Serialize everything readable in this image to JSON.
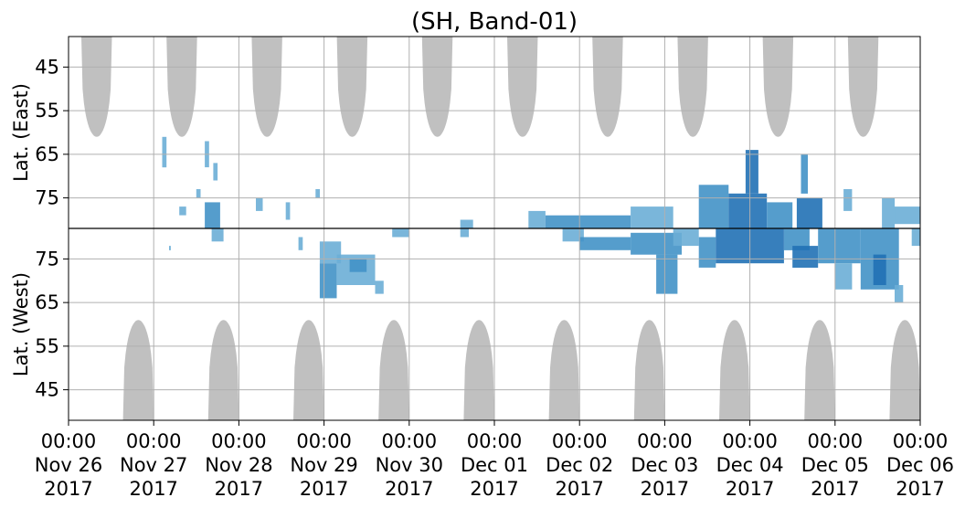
{
  "chart_data": {
    "type": "heatmap",
    "title": "(SH, Band-01)",
    "xlim": [
      "2017-11-26 00:00",
      "2017-12-06 00:00"
    ],
    "x_ticks": [
      [
        "00:00",
        "Nov 26",
        "2017"
      ],
      [
        "00:00",
        "Nov 27",
        "2017"
      ],
      [
        "00:00",
        "Nov 28",
        "2017"
      ],
      [
        "00:00",
        "Nov 29",
        "2017"
      ],
      [
        "00:00",
        "Nov 30",
        "2017"
      ],
      [
        "00:00",
        "Dec 01",
        "2017"
      ],
      [
        "00:00",
        "Dec 02",
        "2017"
      ],
      [
        "00:00",
        "Dec 03",
        "2017"
      ],
      [
        "00:00",
        "Dec 04",
        "2017"
      ],
      [
        "00:00",
        "Dec 05",
        "2017"
      ],
      [
        "00:00",
        "Dec 06",
        "2017"
      ]
    ],
    "grid": true,
    "colors": {
      "echo_light": "#6baed6",
      "echo_mid": "#4292c6",
      "echo_dark": "#2171b5",
      "daylight": "#c0c0c0",
      "grid": "#b0b0b0"
    },
    "panels": [
      {
        "name": "east",
        "ylabel": "Lat. (East)",
        "ylim": [
          38,
          82
        ],
        "yticks": [
          45,
          55,
          65,
          75
        ],
        "daylight_columns": [
          {
            "center_day": 0.33,
            "half_width_day": 0.18,
            "edge_lat": 61
          },
          {
            "center_day": 1.33,
            "half_width_day": 0.18,
            "edge_lat": 61
          },
          {
            "center_day": 2.33,
            "half_width_day": 0.18,
            "edge_lat": 61
          },
          {
            "center_day": 3.33,
            "half_width_day": 0.18,
            "edge_lat": 61
          },
          {
            "center_day": 4.33,
            "half_width_day": 0.18,
            "edge_lat": 61
          },
          {
            "center_day": 5.33,
            "half_width_day": 0.18,
            "edge_lat": 61
          },
          {
            "center_day": 6.33,
            "half_width_day": 0.18,
            "edge_lat": 61
          },
          {
            "center_day": 7.33,
            "half_width_day": 0.18,
            "edge_lat": 61
          },
          {
            "center_day": 8.33,
            "half_width_day": 0.18,
            "edge_lat": 61
          },
          {
            "center_day": 9.33,
            "half_width_day": 0.18,
            "edge_lat": 61
          }
        ],
        "echo_patches": [
          {
            "day_start": 1.1,
            "day_end": 1.15,
            "lat_min": 61,
            "lat_max": 68,
            "level": 1
          },
          {
            "day_start": 1.3,
            "day_end": 1.38,
            "lat_min": 77,
            "lat_max": 79,
            "level": 1
          },
          {
            "day_start": 1.5,
            "day_end": 1.55,
            "lat_min": 73,
            "lat_max": 75,
            "level": 1
          },
          {
            "day_start": 1.6,
            "day_end": 1.65,
            "lat_min": 62,
            "lat_max": 68,
            "level": 1
          },
          {
            "day_start": 1.6,
            "day_end": 1.78,
            "lat_min": 76,
            "lat_max": 82,
            "level": 2
          },
          {
            "day_start": 1.7,
            "day_end": 1.75,
            "lat_min": 67,
            "lat_max": 71,
            "level": 1
          },
          {
            "day_start": 2.2,
            "day_end": 2.28,
            "lat_min": 75,
            "lat_max": 78,
            "level": 1
          },
          {
            "day_start": 2.55,
            "day_end": 2.6,
            "lat_min": 76,
            "lat_max": 80,
            "level": 1
          },
          {
            "day_start": 2.9,
            "day_end": 2.95,
            "lat_min": 73,
            "lat_max": 75,
            "level": 1
          },
          {
            "day_start": 4.6,
            "day_end": 4.75,
            "lat_min": 80,
            "lat_max": 82,
            "level": 1
          },
          {
            "day_start": 5.4,
            "day_end": 5.6,
            "lat_min": 78,
            "lat_max": 82,
            "level": 1
          },
          {
            "day_start": 5.6,
            "day_end": 6.6,
            "lat_min": 79,
            "lat_max": 82,
            "level": 2
          },
          {
            "day_start": 6.6,
            "day_end": 7.1,
            "lat_min": 77,
            "lat_max": 82,
            "level": 1
          },
          {
            "day_start": 7.4,
            "day_end": 7.75,
            "lat_min": 72,
            "lat_max": 82,
            "level": 2
          },
          {
            "day_start": 7.75,
            "day_end": 8.2,
            "lat_min": 74,
            "lat_max": 82,
            "level": 3
          },
          {
            "day_start": 7.95,
            "day_end": 8.1,
            "lat_min": 64,
            "lat_max": 74,
            "level": 3
          },
          {
            "day_start": 8.2,
            "day_end": 8.5,
            "lat_min": 76,
            "lat_max": 82,
            "level": 2
          },
          {
            "day_start": 8.55,
            "day_end": 8.85,
            "lat_min": 75,
            "lat_max": 82,
            "level": 3
          },
          {
            "day_start": 8.6,
            "day_end": 8.68,
            "lat_min": 65,
            "lat_max": 74,
            "level": 2
          },
          {
            "day_start": 9.1,
            "day_end": 9.2,
            "lat_min": 73,
            "lat_max": 78,
            "level": 1
          },
          {
            "day_start": 9.55,
            "day_end": 9.7,
            "lat_min": 75,
            "lat_max": 82,
            "level": 1
          },
          {
            "day_start": 9.7,
            "day_end": 10.0,
            "lat_min": 77,
            "lat_max": 81,
            "level": 1
          }
        ]
      },
      {
        "name": "west",
        "ylabel": "Lat. (West)",
        "ylim": [
          38,
          82
        ],
        "yticks": [
          45,
          55,
          65,
          75
        ],
        "daylight_columns": [
          {
            "center_day": 0.82,
            "half_width_day": 0.18,
            "edge_lat": 61
          },
          {
            "center_day": 1.82,
            "half_width_day": 0.18,
            "edge_lat": 61
          },
          {
            "center_day": 2.82,
            "half_width_day": 0.18,
            "edge_lat": 61
          },
          {
            "center_day": 3.82,
            "half_width_day": 0.18,
            "edge_lat": 61
          },
          {
            "center_day": 4.82,
            "half_width_day": 0.18,
            "edge_lat": 61
          },
          {
            "center_day": 5.82,
            "half_width_day": 0.18,
            "edge_lat": 61
          },
          {
            "center_day": 6.82,
            "half_width_day": 0.18,
            "edge_lat": 61
          },
          {
            "center_day": 7.82,
            "half_width_day": 0.18,
            "edge_lat": 61
          },
          {
            "center_day": 8.82,
            "half_width_day": 0.18,
            "edge_lat": 61
          },
          {
            "center_day": 9.82,
            "half_width_day": 0.18,
            "edge_lat": 61
          }
        ],
        "echo_patches": [
          {
            "day_start": 1.68,
            "day_end": 1.82,
            "lat_min": 79,
            "lat_max": 82,
            "level": 1
          },
          {
            "day_start": 1.18,
            "day_end": 1.2,
            "lat_min": 77,
            "lat_max": 78,
            "level": 1
          },
          {
            "day_start": 2.7,
            "day_end": 2.75,
            "lat_min": 77,
            "lat_max": 80,
            "level": 1
          },
          {
            "day_start": 2.95,
            "day_end": 3.2,
            "lat_min": 74,
            "lat_max": 79,
            "level": 1
          },
          {
            "day_start": 2.95,
            "day_end": 3.15,
            "lat_min": 66,
            "lat_max": 74,
            "level": 2
          },
          {
            "day_start": 3.15,
            "day_end": 3.6,
            "lat_min": 69,
            "lat_max": 76,
            "level": 1
          },
          {
            "day_start": 3.3,
            "day_end": 3.5,
            "lat_min": 72,
            "lat_max": 75,
            "level": 2
          },
          {
            "day_start": 3.6,
            "day_end": 3.7,
            "lat_min": 67,
            "lat_max": 70,
            "level": 1
          },
          {
            "day_start": 3.8,
            "day_end": 4.0,
            "lat_min": 80,
            "lat_max": 82,
            "level": 1
          },
          {
            "day_start": 4.6,
            "day_end": 4.7,
            "lat_min": 80,
            "lat_max": 82,
            "level": 1
          },
          {
            "day_start": 5.8,
            "day_end": 6.05,
            "lat_min": 79,
            "lat_max": 82,
            "level": 1
          },
          {
            "day_start": 6.0,
            "day_end": 6.6,
            "lat_min": 77,
            "lat_max": 80,
            "level": 2
          },
          {
            "day_start": 6.6,
            "day_end": 7.2,
            "lat_min": 76,
            "lat_max": 81,
            "level": 2
          },
          {
            "day_start": 6.9,
            "day_end": 7.15,
            "lat_min": 67,
            "lat_max": 76,
            "level": 2
          },
          {
            "day_start": 7.1,
            "day_end": 7.4,
            "lat_min": 78,
            "lat_max": 82,
            "level": 1
          },
          {
            "day_start": 7.4,
            "day_end": 7.6,
            "lat_min": 73,
            "lat_max": 80,
            "level": 2
          },
          {
            "day_start": 7.6,
            "day_end": 8.4,
            "lat_min": 74,
            "lat_max": 82,
            "level": 3
          },
          {
            "day_start": 8.4,
            "day_end": 8.7,
            "lat_min": 77,
            "lat_max": 82,
            "level": 2
          },
          {
            "day_start": 8.5,
            "day_end": 8.8,
            "lat_min": 73,
            "lat_max": 78,
            "level": 3
          },
          {
            "day_start": 8.8,
            "day_end": 9.3,
            "lat_min": 74,
            "lat_max": 82,
            "level": 2
          },
          {
            "day_start": 9.0,
            "day_end": 9.2,
            "lat_min": 68,
            "lat_max": 74,
            "level": 1
          },
          {
            "day_start": 9.3,
            "day_end": 9.75,
            "lat_min": 68,
            "lat_max": 82,
            "level": 2
          },
          {
            "day_start": 9.45,
            "day_end": 9.6,
            "lat_min": 69,
            "lat_max": 76,
            "level": 3
          },
          {
            "day_start": 9.7,
            "day_end": 9.8,
            "lat_min": 65,
            "lat_max": 69,
            "level": 1
          },
          {
            "day_start": 9.9,
            "day_end": 10.0,
            "lat_min": 78,
            "lat_max": 82,
            "level": 1
          }
        ]
      }
    ]
  }
}
